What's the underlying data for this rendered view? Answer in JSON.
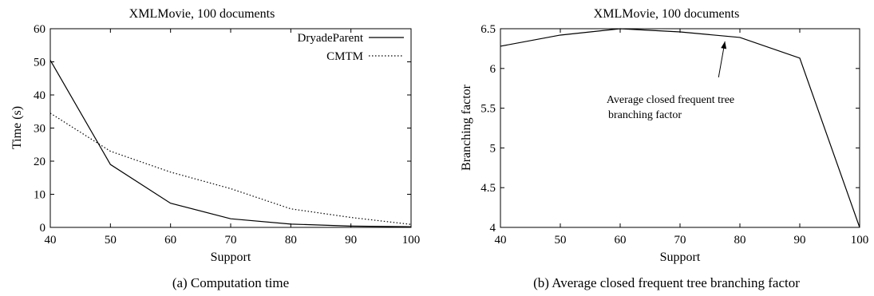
{
  "chart_data": [
    {
      "type": "line",
      "title": "XMLMovie, 100 documents",
      "xlabel": "Support",
      "ylabel": "Time (s)",
      "xlim": [
        40,
        100
      ],
      "ylim": [
        0,
        60
      ],
      "xticks": [
        40,
        50,
        60,
        70,
        80,
        90,
        100
      ],
      "yticks": [
        0,
        10,
        20,
        30,
        40,
        50,
        60
      ],
      "x": [
        40,
        50,
        60,
        70,
        80,
        90,
        100
      ],
      "series": [
        {
          "name": "DryadeParent",
          "style": "solid",
          "values": [
            50.5,
            19,
            7.3,
            2.6,
            1.0,
            0.4,
            0.2
          ]
        },
        {
          "name": "CMTM",
          "style": "dotted",
          "values": [
            34.5,
            23,
            16.7,
            11.7,
            5.6,
            3.0,
            0.9
          ]
        }
      ],
      "legend_position": "top-right",
      "grid": false,
      "caption": "(a) Computation time"
    },
    {
      "type": "line",
      "title": "XMLMovie, 100 documents",
      "xlabel": "Support",
      "ylabel": "Branching factor",
      "xlim": [
        40,
        100
      ],
      "ylim": [
        4,
        6.5
      ],
      "xticks": [
        40,
        50,
        60,
        70,
        80,
        90,
        100
      ],
      "yticks": [
        4,
        4.5,
        5,
        5.5,
        6,
        6.5
      ],
      "x": [
        40,
        50,
        60,
        70,
        80,
        90,
        100
      ],
      "series": [
        {
          "style": "solid",
          "values": [
            6.28,
            6.42,
            6.5,
            6.46,
            6.39,
            6.13,
            4.0
          ]
        }
      ],
      "annotation": {
        "lines": [
          "Average closed frequent tree",
          "branching factor"
        ],
        "arrow_to": [
          77.5,
          6.34
        ]
      },
      "grid": false,
      "caption": "(b) Average closed frequent tree branching factor"
    }
  ]
}
